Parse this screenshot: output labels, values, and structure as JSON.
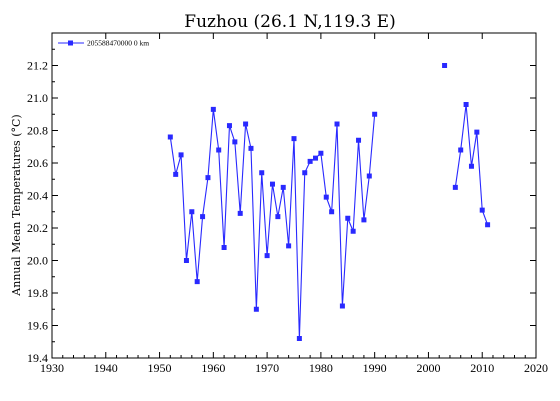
{
  "chart_data": {
    "type": "line",
    "title": "Fuzhou (26.1 N,119.3 E)",
    "xlabel": "",
    "ylabel": "Annual Mean Temperatures (°C)",
    "xlim": [
      1930,
      2020
    ],
    "ylim": [
      19.4,
      21.4
    ],
    "xticks": [
      1930,
      1940,
      1950,
      1960,
      1970,
      1980,
      1990,
      2000,
      2010,
      2020
    ],
    "yticks": [
      19.4,
      19.6,
      19.8,
      20.0,
      20.2,
      20.4,
      20.6,
      20.8,
      21.0,
      21.2
    ],
    "legend": {
      "position": "top-left",
      "entries": [
        "205588470000 0 km"
      ]
    },
    "grid": false,
    "series": [
      {
        "name": "205588470000 0 km",
        "color": "#2929ff",
        "points": [
          [
            1952,
            20.76
          ],
          [
            1953,
            20.53
          ],
          [
            1954,
            20.65
          ],
          [
            1955,
            20.0
          ],
          [
            1956,
            20.3
          ],
          [
            1957,
            19.87
          ],
          [
            1958,
            20.27
          ],
          [
            1959,
            20.51
          ],
          [
            1960,
            20.93
          ],
          [
            1961,
            20.68
          ],
          [
            1962,
            20.08
          ],
          [
            1963,
            20.83
          ],
          [
            1964,
            20.73
          ],
          [
            1965,
            20.29
          ],
          [
            1966,
            20.84
          ],
          [
            1967,
            20.69
          ],
          [
            1968,
            19.7
          ],
          [
            1969,
            20.54
          ],
          [
            1970,
            20.03
          ],
          [
            1971,
            20.47
          ],
          [
            1972,
            20.27
          ],
          [
            1973,
            20.45
          ],
          [
            1974,
            20.09
          ],
          [
            1975,
            20.75
          ],
          [
            1976,
            19.52
          ],
          [
            1977,
            20.54
          ],
          [
            1978,
            20.61
          ],
          [
            1979,
            20.63
          ],
          [
            1980,
            20.66
          ],
          [
            1981,
            20.39
          ],
          [
            1982,
            20.3
          ],
          [
            1983,
            20.84
          ],
          [
            1984,
            19.72
          ],
          [
            1985,
            20.26
          ],
          [
            1986,
            20.18
          ],
          [
            1987,
            20.74
          ],
          [
            1988,
            20.25
          ],
          [
            1989,
            20.52
          ],
          [
            1990,
            20.9
          ],
          null,
          [
            2003,
            21.2
          ],
          null,
          [
            2005,
            20.45
          ],
          [
            2006,
            20.68
          ],
          [
            2007,
            20.96
          ],
          [
            2008,
            20.58
          ],
          [
            2009,
            20.79
          ],
          [
            2010,
            20.31
          ],
          [
            2011,
            20.22
          ]
        ]
      }
    ]
  }
}
